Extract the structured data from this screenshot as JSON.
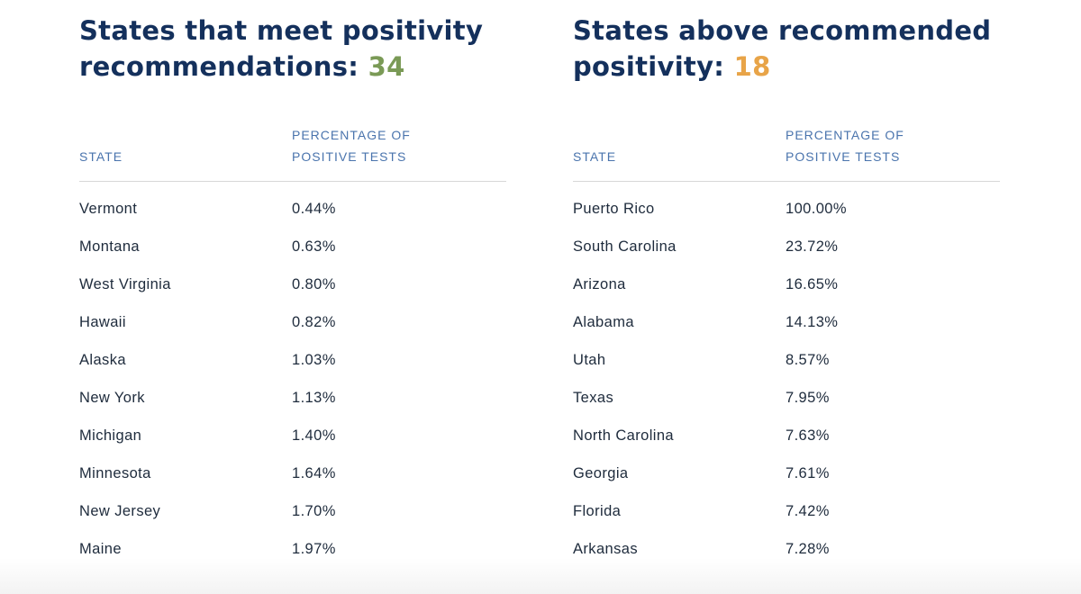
{
  "left_panel": {
    "title_text": "States that meet positivity recommendations: ",
    "count": "34",
    "column_state": "STATE",
    "column_pct_line1": "PERCENTAGE OF",
    "column_pct_line2": "POSITIVE TESTS",
    "rows": [
      {
        "state": "Vermont",
        "pct": "0.44%"
      },
      {
        "state": "Montana",
        "pct": "0.63%"
      },
      {
        "state": "West Virginia",
        "pct": "0.80%"
      },
      {
        "state": "Hawaii",
        "pct": "0.82%"
      },
      {
        "state": "Alaska",
        "pct": "1.03%"
      },
      {
        "state": "New York",
        "pct": "1.13%"
      },
      {
        "state": "Michigan",
        "pct": "1.40%"
      },
      {
        "state": "Minnesota",
        "pct": "1.64%"
      },
      {
        "state": "New Jersey",
        "pct": "1.70%"
      },
      {
        "state": "Maine",
        "pct": "1.97%"
      }
    ]
  },
  "right_panel": {
    "title_text": "States above recommended positivity: ",
    "count": "18",
    "column_state": "STATE",
    "column_pct_line1": "PERCENTAGE OF",
    "column_pct_line2": "POSITIVE TESTS",
    "rows": [
      {
        "state": "Puerto Rico",
        "pct": "100.00%"
      },
      {
        "state": "South Carolina",
        "pct": "23.72%"
      },
      {
        "state": "Arizona",
        "pct": "16.65%"
      },
      {
        "state": "Alabama",
        "pct": "14.13%"
      },
      {
        "state": "Utah",
        "pct": "8.57%"
      },
      {
        "state": "Texas",
        "pct": "7.95%"
      },
      {
        "state": "North Carolina",
        "pct": "7.63%"
      },
      {
        "state": "Georgia",
        "pct": "7.61%"
      },
      {
        "state": "Florida",
        "pct": "7.42%"
      },
      {
        "state": "Arkansas",
        "pct": "7.28%"
      }
    ]
  },
  "colors": {
    "title": "#14305c",
    "count_meet": "#7a9a56",
    "count_above": "#e8a448",
    "column_header": "#4a74ad",
    "row_text": "#1e2b3c",
    "divider": "#d7d7d7"
  }
}
